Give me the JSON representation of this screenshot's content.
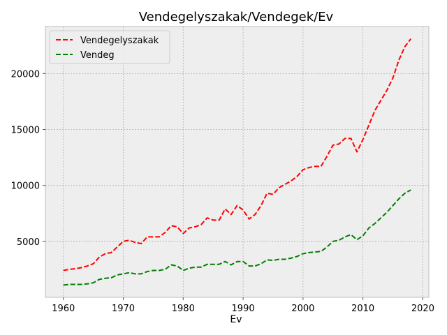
{
  "chart_data": {
    "type": "line",
    "title": "Vendegelyszakak/Vendegek/Ev",
    "xlabel": "Ev",
    "ylabel": "",
    "xlim": [
      1957,
      2021
    ],
    "ylim": [
      0,
      24200
    ],
    "xticks": [
      1960,
      1970,
      1980,
      1990,
      2000,
      2010,
      2020
    ],
    "yticks": [
      5000,
      10000,
      15000,
      20000
    ],
    "grid": true,
    "legend_position": "upper-left",
    "x": [
      1960,
      1961,
      1962,
      1963,
      1964,
      1965,
      1966,
      1967,
      1968,
      1969,
      1970,
      1971,
      1972,
      1973,
      1974,
      1975,
      1976,
      1977,
      1978,
      1979,
      1980,
      1981,
      1982,
      1983,
      1984,
      1985,
      1986,
      1987,
      1988,
      1989,
      1990,
      1991,
      1992,
      1993,
      1994,
      1995,
      1996,
      1997,
      1998,
      1999,
      2000,
      2001,
      2002,
      2003,
      2004,
      2005,
      2006,
      2007,
      2008,
      2009,
      2010,
      2011,
      2012,
      2013,
      2014,
      2015,
      2016,
      2017,
      2018
    ],
    "series": [
      {
        "name": "Vendegelyszakak",
        "color": "#ff0000",
        "values": [
          2400,
          2500,
          2550,
          2650,
          2800,
          3000,
          3600,
          3900,
          4000,
          4500,
          5000,
          5100,
          4900,
          4800,
          5400,
          5400,
          5400,
          5800,
          6400,
          6300,
          5700,
          6200,
          6300,
          6500,
          7100,
          6900,
          6900,
          7900,
          7400,
          8200,
          7800,
          7000,
          7400,
          8200,
          9300,
          9200,
          9800,
          10100,
          10400,
          10800,
          11400,
          11600,
          11700,
          11700,
          12600,
          13600,
          13700,
          14200,
          14200,
          13000,
          14100,
          15400,
          16700,
          17600,
          18500,
          19600,
          21200,
          22400,
          23100
        ],
        "dash": "dashed"
      },
      {
        "name": "Vendeg",
        "color": "#008000",
        "values": [
          1100,
          1150,
          1150,
          1150,
          1200,
          1300,
          1600,
          1700,
          1750,
          2000,
          2100,
          2200,
          2100,
          2100,
          2300,
          2400,
          2400,
          2500,
          2900,
          2800,
          2400,
          2600,
          2700,
          2700,
          2950,
          2950,
          2950,
          3200,
          2900,
          3200,
          3200,
          2800,
          2800,
          3000,
          3350,
          3300,
          3400,
          3400,
          3500,
          3650,
          3900,
          4000,
          4050,
          4100,
          4500,
          5000,
          5100,
          5400,
          5600,
          5150,
          5500,
          6200,
          6600,
          7100,
          7600,
          8200,
          8800,
          9300,
          9600
        ],
        "dash": "dashed"
      }
    ]
  },
  "legend": {
    "series_0": "Vendegelyszakak",
    "series_1": "Vendeg"
  }
}
